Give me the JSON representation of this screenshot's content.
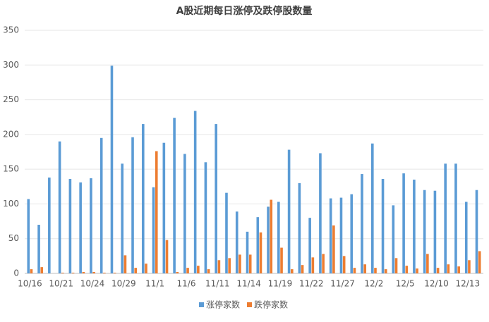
{
  "chart_data": {
    "type": "bar",
    "title": "A股近期每日涨停及跌停股数量",
    "categories": [
      "10/16",
      null,
      null,
      "10/21",
      null,
      null,
      "10/24",
      null,
      null,
      "10/29",
      null,
      null,
      "11/1",
      null,
      null,
      "11/6",
      null,
      null,
      "11/11",
      null,
      null,
      "11/14",
      null,
      null,
      "11/19",
      null,
      null,
      "11/22",
      null,
      null,
      "11/27",
      null,
      null,
      "12/2",
      null,
      null,
      "12/5",
      null,
      null,
      "12/10",
      null,
      null,
      "12/13",
      null
    ],
    "series": [
      {
        "name": "涨停家数",
        "color": "#5b9bd5",
        "values": [
          107,
          70,
          138,
          190,
          136,
          131,
          137,
          195,
          299,
          158,
          196,
          215,
          124,
          188,
          224,
          172,
          234,
          160,
          215,
          116,
          89,
          60,
          81,
          96,
          103,
          178,
          130,
          80,
          173,
          108,
          109,
          114,
          143,
          187,
          136,
          98,
          144,
          135,
          120,
          119,
          158,
          158,
          103,
          120
        ]
      },
      {
        "name": "跌停家数",
        "color": "#ed7d31",
        "values": [
          6,
          9,
          0,
          1,
          1,
          2,
          2,
          1,
          1,
          26,
          8,
          14,
          176,
          48,
          2,
          8,
          11,
          6,
          19,
          22,
          27,
          27,
          59,
          106,
          37,
          6,
          12,
          23,
          28,
          69,
          25,
          8,
          13,
          8,
          6,
          22,
          11,
          7,
          28,
          8,
          13,
          10,
          19,
          32
        ]
      }
    ],
    "ylim": [
      0,
      350
    ],
    "yticks": [
      0,
      50,
      100,
      150,
      200,
      250,
      300,
      350
    ],
    "grid": true,
    "legend": "bottom"
  }
}
